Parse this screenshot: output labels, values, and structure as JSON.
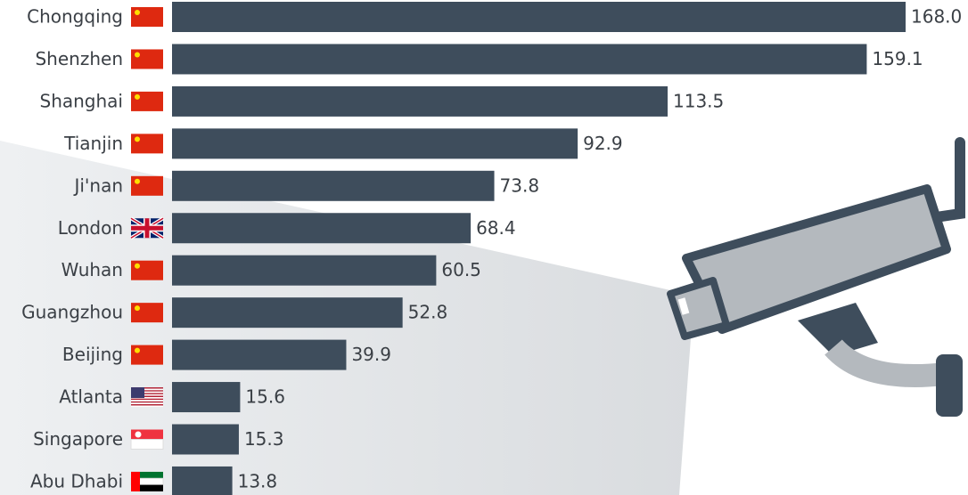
{
  "chart_data": {
    "type": "bar",
    "orientation": "horizontal",
    "categories": [
      "Chongqing",
      "Shenzhen",
      "Shanghai",
      "Tianjin",
      "Ji'nan",
      "London",
      "Wuhan",
      "Guangzhou",
      "Beijing",
      "Atlanta",
      "Singapore",
      "Abu Dhabi"
    ],
    "values": [
      168.0,
      159.1,
      113.5,
      92.9,
      73.8,
      68.4,
      60.5,
      52.8,
      39.9,
      15.6,
      15.3,
      13.8
    ],
    "value_labels": [
      "168.0",
      "159.1",
      "113.5",
      "92.9",
      "73.8",
      "68.4",
      "60.5",
      "52.8",
      "39.9",
      "15.6",
      "15.3",
      "13.8"
    ],
    "color": "#3e4d5c"
  }
}
